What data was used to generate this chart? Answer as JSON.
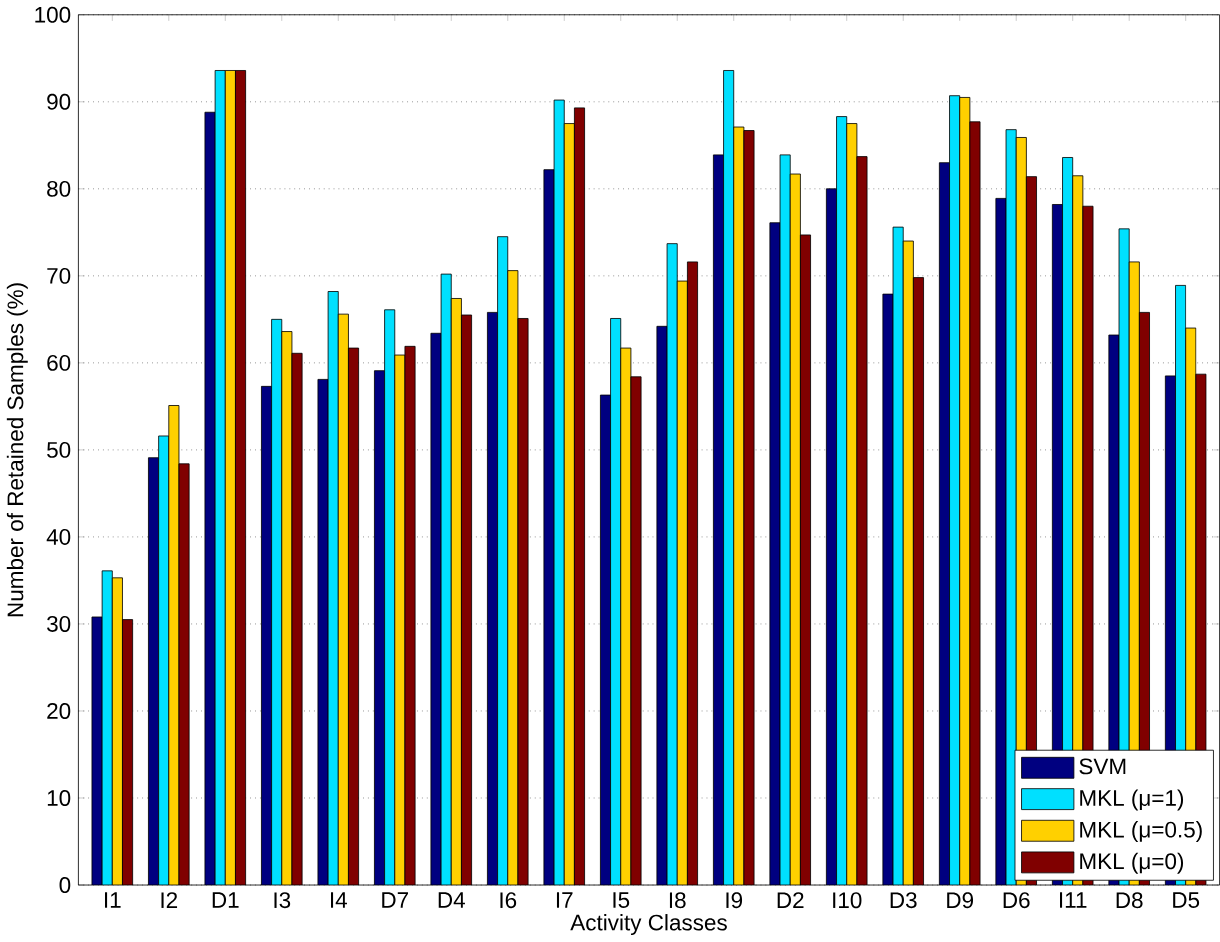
{
  "chart_data": {
    "type": "bar",
    "xlabel": "Activity Classes",
    "ylabel": "Number of Retained Samples (%)",
    "categories": [
      "I1",
      "I2",
      "D1",
      "I3",
      "I4",
      "D7",
      "D4",
      "I6",
      "I7",
      "I5",
      "I8",
      "I9",
      "D2",
      "I10",
      "D3",
      "D9",
      "D6",
      "I11",
      "D8",
      "D5"
    ],
    "series": [
      {
        "name": "SVM",
        "color": "#000080",
        "values": [
          30.8,
          49.1,
          88.8,
          57.3,
          58.1,
          59.1,
          63.4,
          65.8,
          82.2,
          56.3,
          64.2,
          83.9,
          76.1,
          80.0,
          67.9,
          83.0,
          78.9,
          78.2,
          63.2,
          58.5
        ]
      },
      {
        "name": "MKL (μ=1)",
        "color": "#00e0ff",
        "values": [
          36.1,
          51.6,
          93.6,
          65.0,
          68.2,
          66.1,
          70.2,
          74.5,
          90.2,
          65.1,
          73.7,
          93.6,
          83.9,
          88.3,
          75.6,
          90.7,
          86.8,
          83.6,
          75.4,
          68.9
        ]
      },
      {
        "name": "MKL (μ=0.5)",
        "color": "#ffd000",
        "values": [
          35.3,
          55.1,
          93.6,
          63.6,
          65.6,
          60.9,
          67.4,
          70.6,
          87.5,
          61.7,
          69.4,
          87.1,
          81.7,
          87.5,
          74.0,
          90.5,
          85.9,
          81.5,
          71.6,
          64.0
        ]
      },
      {
        "name": "MKL (μ=0)",
        "color": "#800000",
        "values": [
          30.5,
          48.4,
          93.6,
          61.1,
          61.7,
          61.9,
          65.5,
          65.1,
          89.3,
          58.4,
          71.6,
          86.7,
          74.7,
          83.7,
          69.8,
          87.7,
          81.4,
          78.0,
          65.8,
          58.7
        ]
      }
    ],
    "ylim": [
      0,
      100
    ],
    "yticks": [
      0,
      10,
      20,
      30,
      40,
      50,
      60,
      70,
      80,
      90,
      100
    ],
    "grid": "y",
    "legend": "bottom right"
  }
}
